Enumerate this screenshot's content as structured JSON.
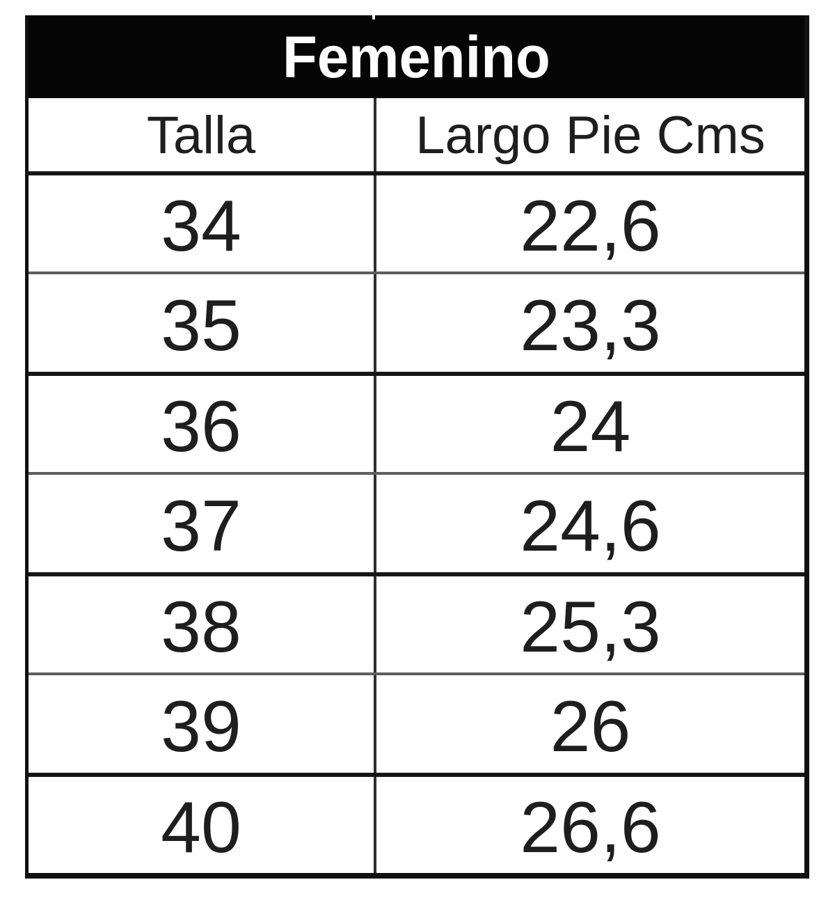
{
  "size_chart": {
    "title": "Femenino",
    "columns": [
      {
        "label": "Talla"
      },
      {
        "label": "Largo Pie Cms"
      }
    ],
    "rows": [
      {
        "talla": "34",
        "largo_pie_cms": "22,6"
      },
      {
        "talla": "35",
        "largo_pie_cms": "23,3"
      },
      {
        "talla": "36",
        "largo_pie_cms": "24"
      },
      {
        "talla": "37",
        "largo_pie_cms": "24,6"
      },
      {
        "talla": "38",
        "largo_pie_cms": "25,3"
      },
      {
        "talla": "39",
        "largo_pie_cms": "26"
      },
      {
        "talla": "40",
        "largo_pie_cms": "26,6"
      }
    ],
    "colors": {
      "title_bg": "#050505",
      "title_text": "#ffffff",
      "cell_bg": "#ffffff",
      "text": "#1e1e1e",
      "thick_line": "#161616",
      "thin_line": "#5e5e5e",
      "outer_border": "#111111",
      "column_divider": "#2e2e2e"
    }
  }
}
